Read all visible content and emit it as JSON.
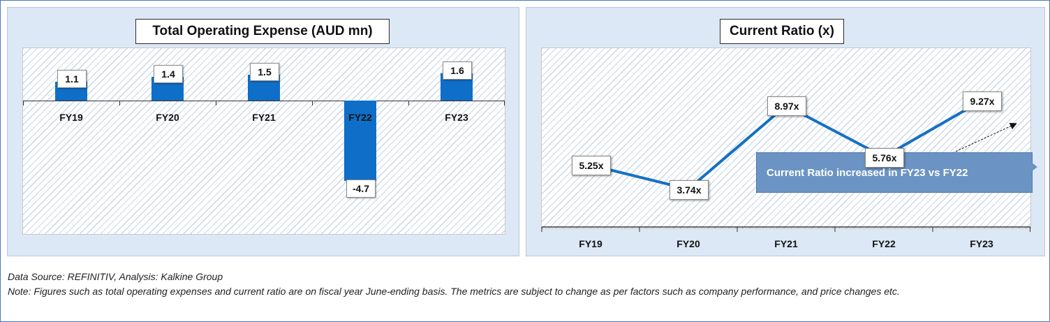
{
  "chart_data": [
    {
      "type": "bar",
      "title": "Total Operating Expense (AUD mn)",
      "categories": [
        "FY19",
        "FY20",
        "FY21",
        "FY22",
        "FY23"
      ],
      "values": [
        1.1,
        1.4,
        1.5,
        -4.7,
        1.6
      ],
      "value_labels": [
        "1.1",
        "1.4",
        "1.5",
        "-4.7",
        "1.6"
      ],
      "ylim": [
        -4.7,
        1.6
      ],
      "bar_color": "#0e6ec8"
    },
    {
      "type": "line",
      "title": "Current Ratio (x)",
      "categories": [
        "FY19",
        "FY20",
        "FY21",
        "FY22",
        "FY23"
      ],
      "values": [
        5.25,
        3.74,
        8.97,
        5.76,
        9.27
      ],
      "value_labels": [
        "5.25x",
        "3.74x",
        "8.97x",
        "5.76x",
        "9.27x"
      ],
      "line_color": "#1570c4",
      "annotation": "Current Ratio increased in FY23 vs FY22"
    }
  ],
  "footer": {
    "source": "Data Source: REFINITIV, Analysis: Kalkine Group",
    "note": "Note: Figures such as total operating expenses and current ratio are on fiscal year June-ending basis. The metrics are subject to change as per factors such as company performance, and price changes etc."
  }
}
